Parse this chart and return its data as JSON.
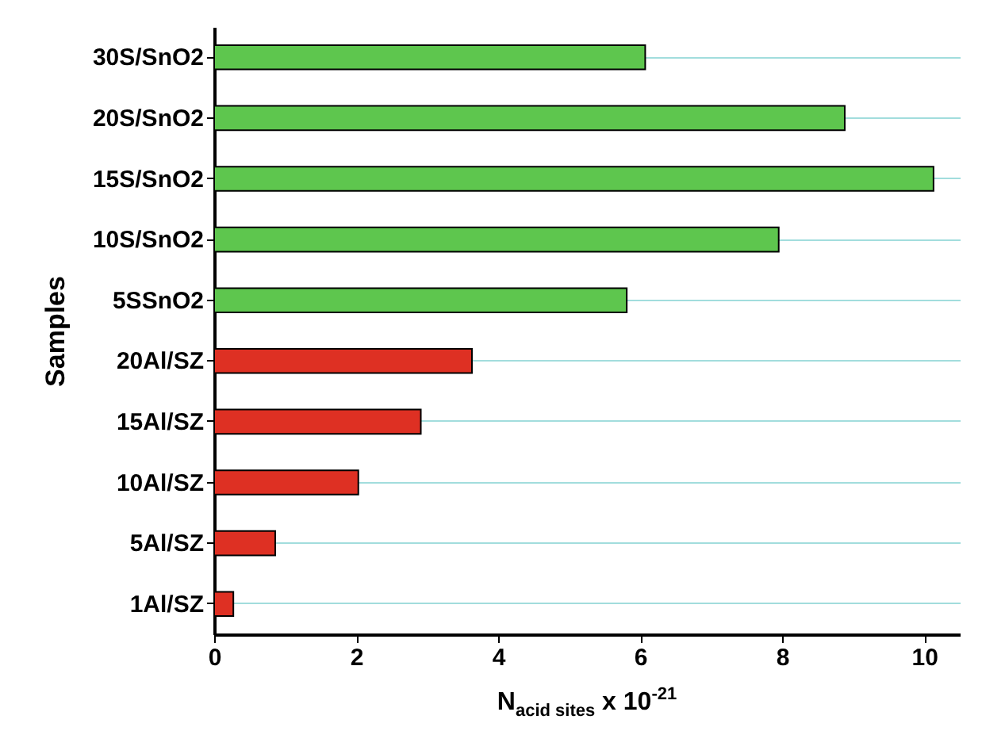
{
  "chart_data": {
    "type": "bar",
    "orientation": "horizontal",
    "xlabel": "N$_{acid sites}$ x 10$^{-21}$",
    "ylabel": "Samples",
    "categories": [
      "30S/SnO2",
      "20S/SnO2",
      "15S/SnO2",
      "10S/SnO2",
      "5SSnO2",
      "20Al/SZ",
      "15Al/SZ",
      "10Al/SZ",
      "5Al/SZ",
      "1Al/SZ"
    ],
    "values": [
      6.07,
      8.88,
      10.13,
      7.95,
      5.81,
      3.63,
      2.91,
      2.03,
      0.86,
      0.27
    ],
    "colors": [
      "#5ec64e",
      "#5ec64e",
      "#5ec64e",
      "#5ec64e",
      "#5ec64e",
      "#de3023",
      "#de3023",
      "#de3023",
      "#de3023",
      "#de3023"
    ],
    "xlim": [
      0,
      10.5
    ],
    "xticks": [
      0,
      2,
      4,
      6,
      8,
      10
    ],
    "grid": "y"
  }
}
